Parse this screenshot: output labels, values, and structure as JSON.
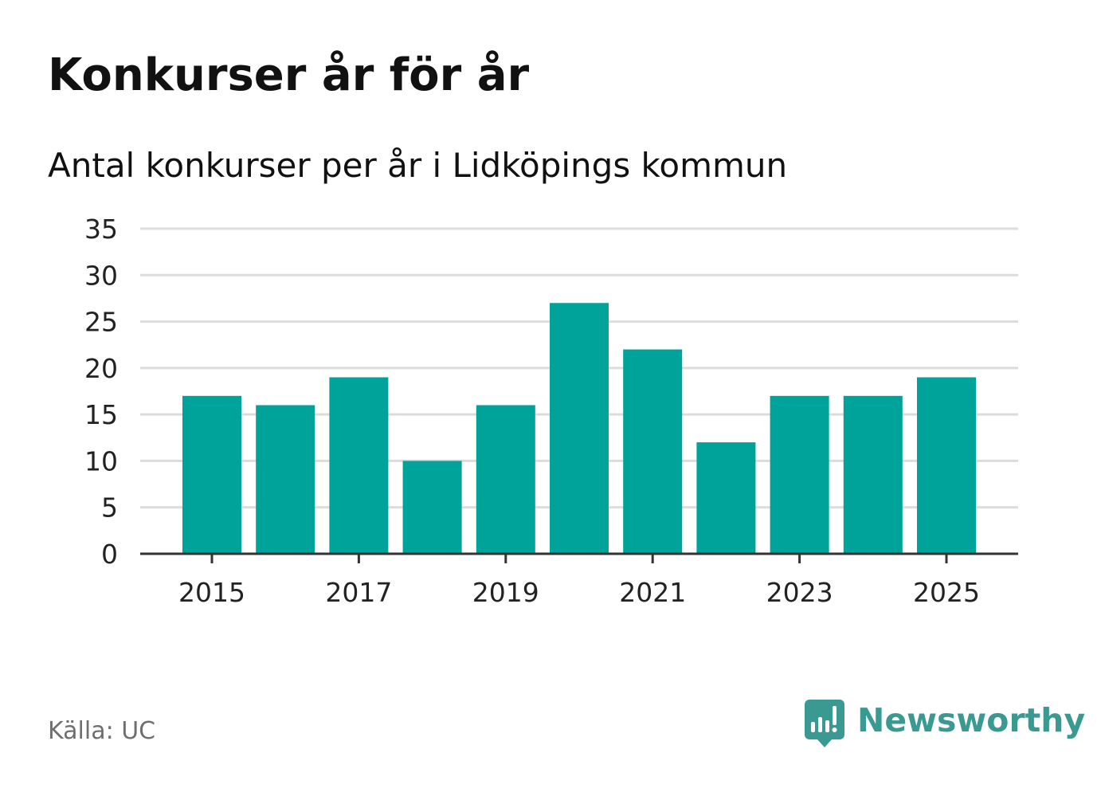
{
  "chart_data": {
    "type": "bar",
    "title": "Konkurser år för år",
    "subtitle": "Antal konkurser per år i Lidköpings kommun",
    "categories": [
      "2015",
      "2016",
      "2017",
      "2018",
      "2019",
      "2020",
      "2021",
      "2022",
      "2023",
      "2024",
      "2025"
    ],
    "values": [
      17,
      16,
      19,
      10,
      16,
      27,
      22,
      12,
      17,
      17,
      19
    ],
    "x_tick_labels": [
      "2015",
      "2017",
      "2019",
      "2021",
      "2023",
      "2025"
    ],
    "y_ticks": [
      "0",
      "5",
      "10",
      "15",
      "20",
      "25",
      "30",
      "35"
    ],
    "xlabel": "",
    "ylabel": "",
    "ylim": [
      0,
      35
    ],
    "grid": true,
    "bar_color": "#00a39a"
  },
  "footer": {
    "source": "Källa: UC",
    "brand_name": "Newsworthy",
    "brand_icon": "newsworthy-logo-icon",
    "brand_color": "#3a9a92"
  }
}
